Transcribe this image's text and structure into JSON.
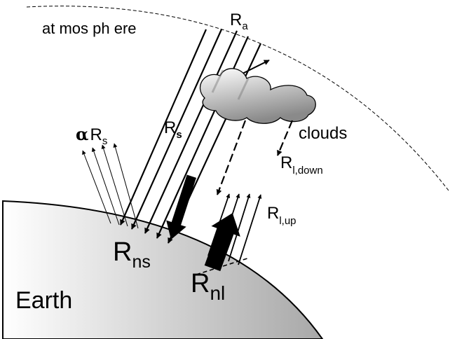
{
  "labels": {
    "atmosphere": "at mos ph ere",
    "ra": {
      "main": "R",
      "sub": "a"
    },
    "rs": {
      "main": "R",
      "sub": "s"
    },
    "alpha_rs": {
      "alpha": "α",
      "main": "R",
      "sub": "s"
    },
    "clouds": "clouds",
    "rl_down": {
      "main": "R",
      "sub": "l,down"
    },
    "rl_up": {
      "main": "R",
      "sub": "l,up"
    },
    "rns": {
      "main": "R",
      "sub": "ns"
    },
    "rnl": {
      "main": "R",
      "sub": "nl"
    },
    "earth": "Earth"
  },
  "colors": {
    "stroke": "#000000",
    "background": "#ffffff",
    "earth_light": "#ffffff",
    "earth_dark": "#a8a8a8",
    "cloud_light": "#ffffff",
    "cloud_dark": "#8a8a8a"
  }
}
